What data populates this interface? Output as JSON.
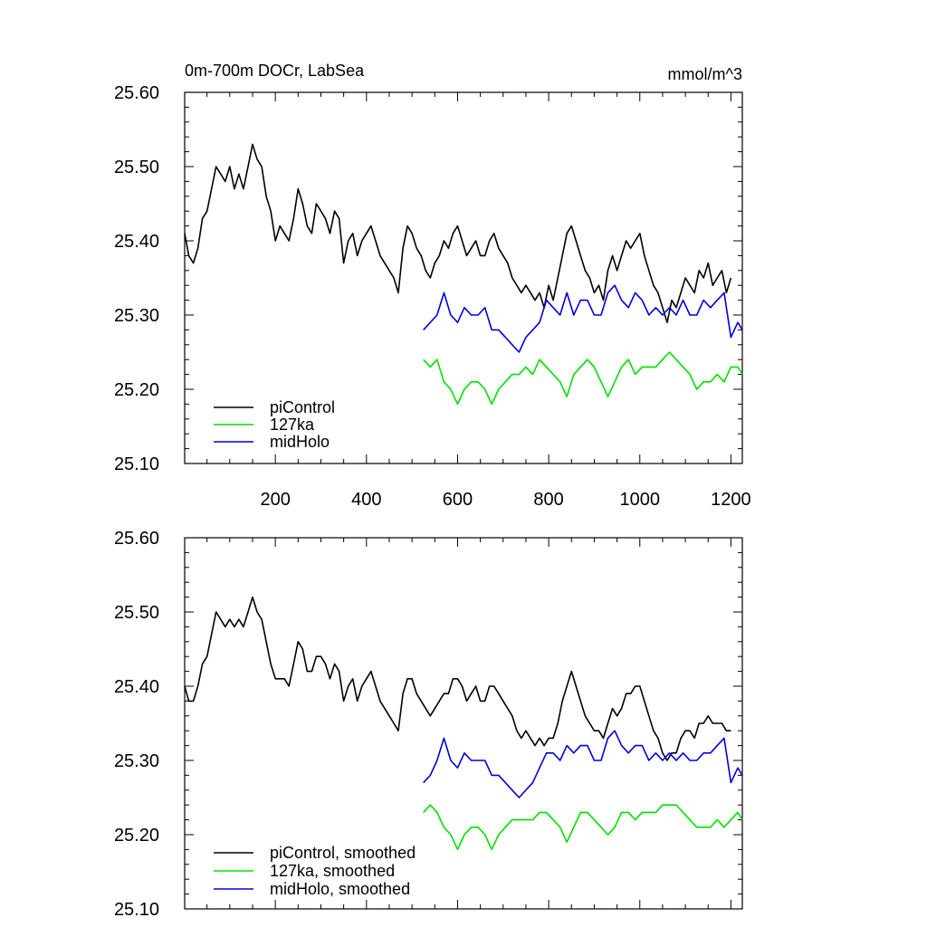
{
  "chart_data": [
    {
      "type": "line",
      "title": "0m-700m DOCr, LabSea",
      "units": "mmol/m^3",
      "xlim": [
        1,
        1225
      ],
      "ylim": [
        25.1,
        25.6
      ],
      "yticks": [
        "25.10",
        "25.20",
        "25.30",
        "25.40",
        "25.50",
        "25.60"
      ],
      "xticks": [
        "200",
        "400",
        "600",
        "800",
        "1000",
        "1200"
      ],
      "legend_placement": "bottom-left",
      "series": [
        {
          "name": "piControl",
          "color": "#000000",
          "x": [
            1,
            10,
            20,
            30,
            40,
            50,
            60,
            70,
            80,
            90,
            100,
            110,
            120,
            130,
            140,
            150,
            160,
            170,
            180,
            190,
            200,
            210,
            220,
            230,
            240,
            250,
            260,
            270,
            280,
            290,
            300,
            310,
            320,
            330,
            340,
            350,
            360,
            370,
            380,
            390,
            400,
            410,
            420,
            430,
            440,
            450,
            460,
            470,
            480,
            490,
            500,
            510,
            520,
            530,
            540,
            550,
            560,
            570,
            580,
            590,
            600,
            610,
            620,
            630,
            640,
            650,
            660,
            670,
            680,
            690,
            700,
            710,
            720,
            730,
            740,
            750,
            760,
            770,
            780,
            790,
            800,
            810,
            820,
            830,
            840,
            850,
            860,
            870,
            880,
            890,
            900,
            910,
            920,
            930,
            940,
            950,
            960,
            970,
            980,
            990,
            1000,
            1010,
            1020,
            1030,
            1040,
            1050,
            1060,
            1070,
            1080,
            1090,
            1100,
            1110,
            1120,
            1130,
            1140,
            1150,
            1160,
            1170,
            1180,
            1190,
            1200
          ],
          "y": [
            25.41,
            25.38,
            25.37,
            25.39,
            25.43,
            25.44,
            25.47,
            25.5,
            25.49,
            25.48,
            25.5,
            25.47,
            25.49,
            25.47,
            25.5,
            25.53,
            25.51,
            25.5,
            25.46,
            25.44,
            25.4,
            25.42,
            25.41,
            25.4,
            25.43,
            25.47,
            25.45,
            25.42,
            25.41,
            25.45,
            25.44,
            25.43,
            25.41,
            25.44,
            25.43,
            25.37,
            25.4,
            25.41,
            25.38,
            25.4,
            25.41,
            25.42,
            25.4,
            25.38,
            25.37,
            25.36,
            25.35,
            25.33,
            25.39,
            25.42,
            25.41,
            25.39,
            25.38,
            25.36,
            25.35,
            25.37,
            25.38,
            25.4,
            25.39,
            25.41,
            25.42,
            25.4,
            25.38,
            25.39,
            25.4,
            25.38,
            25.38,
            25.4,
            25.41,
            25.39,
            25.38,
            25.37,
            25.35,
            25.34,
            25.33,
            25.34,
            25.33,
            25.32,
            25.33,
            25.31,
            25.34,
            25.32,
            25.35,
            25.38,
            25.41,
            25.42,
            25.4,
            25.38,
            25.36,
            25.35,
            25.33,
            25.34,
            25.32,
            25.36,
            25.38,
            25.36,
            25.38,
            25.4,
            25.39,
            25.4,
            25.41,
            25.38,
            25.36,
            25.34,
            25.33,
            25.31,
            25.29,
            25.32,
            25.31,
            25.33,
            25.35,
            25.34,
            25.33,
            25.36,
            25.35,
            25.37,
            25.34,
            25.35,
            25.36,
            25.33,
            25.35
          ]
        },
        {
          "name": "127ka",
          "color": "#00e000",
          "x": [
            525,
            540,
            555,
            570,
            585,
            600,
            615,
            630,
            645,
            660,
            675,
            690,
            705,
            720,
            735,
            750,
            765,
            780,
            795,
            810,
            825,
            840,
            855,
            870,
            885,
            900,
            915,
            930,
            945,
            960,
            975,
            990,
            1005,
            1020,
            1035,
            1050,
            1065,
            1080,
            1095,
            1110,
            1125,
            1140,
            1155,
            1170,
            1185,
            1200,
            1215,
            1225
          ],
          "y": [
            25.24,
            25.23,
            25.24,
            25.21,
            25.2,
            25.18,
            25.2,
            25.21,
            25.21,
            25.2,
            25.18,
            25.2,
            25.21,
            25.22,
            25.22,
            25.23,
            25.22,
            25.24,
            25.23,
            25.22,
            25.21,
            25.19,
            25.22,
            25.23,
            25.24,
            25.23,
            25.21,
            25.19,
            25.21,
            25.23,
            25.24,
            25.22,
            25.23,
            25.23,
            25.23,
            25.24,
            25.25,
            25.24,
            25.23,
            25.22,
            25.2,
            25.21,
            25.21,
            25.22,
            25.21,
            25.23,
            25.23,
            25.22
          ]
        },
        {
          "name": "midHolo",
          "color": "#0000e0",
          "x": [
            525,
            540,
            555,
            570,
            585,
            600,
            615,
            630,
            645,
            660,
            675,
            690,
            705,
            720,
            735,
            750,
            765,
            780,
            795,
            810,
            825,
            840,
            855,
            870,
            885,
            900,
            915,
            930,
            945,
            960,
            975,
            990,
            1005,
            1020,
            1035,
            1050,
            1065,
            1080,
            1095,
            1110,
            1125,
            1140,
            1155,
            1170,
            1185,
            1200,
            1215,
            1225
          ],
          "y": [
            25.28,
            25.29,
            25.3,
            25.33,
            25.3,
            25.29,
            25.31,
            25.3,
            25.3,
            25.31,
            25.28,
            25.28,
            25.27,
            25.26,
            25.25,
            25.27,
            25.28,
            25.29,
            25.32,
            25.31,
            25.3,
            25.33,
            25.3,
            25.32,
            25.32,
            25.3,
            25.3,
            25.33,
            25.34,
            25.32,
            25.31,
            25.33,
            25.32,
            25.3,
            25.31,
            25.3,
            25.31,
            25.3,
            25.32,
            25.3,
            25.3,
            25.32,
            25.31,
            25.32,
            25.33,
            25.27,
            25.29,
            25.28
          ]
        }
      ]
    },
    {
      "type": "line",
      "xlim": [
        1,
        1225
      ],
      "ylim": [
        25.1,
        25.6
      ],
      "yticks": [
        "25.10",
        "25.20",
        "25.30",
        "25.40",
        "25.50",
        "25.60"
      ],
      "legend_placement": "bottom-left",
      "series": [
        {
          "name": "piControl, smoothed",
          "color": "#000000",
          "x": [
            1,
            10,
            20,
            30,
            40,
            50,
            60,
            70,
            80,
            90,
            100,
            110,
            120,
            130,
            140,
            150,
            160,
            170,
            180,
            190,
            200,
            210,
            220,
            230,
            240,
            250,
            260,
            270,
            280,
            290,
            300,
            310,
            320,
            330,
            340,
            350,
            360,
            370,
            380,
            390,
            400,
            410,
            420,
            430,
            440,
            450,
            460,
            470,
            480,
            490,
            500,
            510,
            520,
            530,
            540,
            550,
            560,
            570,
            580,
            590,
            600,
            610,
            620,
            630,
            640,
            650,
            660,
            670,
            680,
            690,
            700,
            710,
            720,
            730,
            740,
            750,
            760,
            770,
            780,
            790,
            800,
            810,
            820,
            830,
            840,
            850,
            860,
            870,
            880,
            890,
            900,
            910,
            920,
            930,
            940,
            950,
            960,
            970,
            980,
            990,
            1000,
            1010,
            1020,
            1030,
            1040,
            1050,
            1060,
            1070,
            1080,
            1090,
            1100,
            1110,
            1120,
            1130,
            1140,
            1150,
            1160,
            1170,
            1180,
            1190,
            1200
          ],
          "y": [
            25.4,
            25.38,
            25.38,
            25.4,
            25.43,
            25.44,
            25.47,
            25.5,
            25.49,
            25.48,
            25.49,
            25.48,
            25.49,
            25.48,
            25.5,
            25.52,
            25.5,
            25.49,
            25.46,
            25.43,
            25.41,
            25.41,
            25.41,
            25.4,
            25.43,
            25.46,
            25.45,
            25.42,
            25.42,
            25.44,
            25.44,
            25.43,
            25.41,
            25.43,
            25.42,
            25.38,
            25.4,
            25.41,
            25.38,
            25.4,
            25.41,
            25.42,
            25.4,
            25.38,
            25.37,
            25.36,
            25.35,
            25.34,
            25.39,
            25.41,
            25.41,
            25.39,
            25.38,
            25.37,
            25.36,
            25.37,
            25.38,
            25.39,
            25.39,
            25.41,
            25.41,
            25.4,
            25.38,
            25.39,
            25.4,
            25.38,
            25.38,
            25.4,
            25.4,
            25.39,
            25.38,
            25.37,
            25.36,
            25.34,
            25.33,
            25.34,
            25.33,
            25.32,
            25.33,
            25.32,
            25.33,
            25.33,
            25.35,
            25.38,
            25.4,
            25.42,
            25.4,
            25.38,
            25.36,
            25.35,
            25.34,
            25.34,
            25.33,
            25.35,
            25.37,
            25.36,
            25.37,
            25.39,
            25.39,
            25.4,
            25.4,
            25.38,
            25.36,
            25.34,
            25.33,
            25.31,
            25.3,
            25.31,
            25.31,
            25.33,
            25.34,
            25.34,
            25.33,
            25.35,
            25.35,
            25.36,
            25.35,
            25.35,
            25.35,
            25.34,
            25.34
          ]
        },
        {
          "name": "127ka, smoothed",
          "color": "#00e000",
          "x": [
            525,
            540,
            555,
            570,
            585,
            600,
            615,
            630,
            645,
            660,
            675,
            690,
            705,
            720,
            735,
            750,
            765,
            780,
            795,
            810,
            825,
            840,
            855,
            870,
            885,
            900,
            915,
            930,
            945,
            960,
            975,
            990,
            1005,
            1020,
            1035,
            1050,
            1065,
            1080,
            1095,
            1110,
            1125,
            1140,
            1155,
            1170,
            1185,
            1200,
            1215,
            1225
          ],
          "y": [
            25.23,
            25.24,
            25.23,
            25.21,
            25.2,
            25.18,
            25.2,
            25.21,
            25.21,
            25.2,
            25.18,
            25.2,
            25.21,
            25.22,
            25.22,
            25.22,
            25.22,
            25.23,
            25.23,
            25.22,
            25.21,
            25.19,
            25.21,
            25.23,
            25.23,
            25.22,
            25.21,
            25.2,
            25.21,
            25.23,
            25.23,
            25.22,
            25.23,
            25.23,
            25.23,
            25.24,
            25.24,
            25.24,
            25.23,
            25.22,
            25.21,
            25.21,
            25.21,
            25.22,
            25.21,
            25.22,
            25.23,
            25.22
          ]
        },
        {
          "name": "midHolo, smoothed",
          "color": "#0000e0",
          "x": [
            525,
            540,
            555,
            570,
            585,
            600,
            615,
            630,
            645,
            660,
            675,
            690,
            705,
            720,
            735,
            750,
            765,
            780,
            795,
            810,
            825,
            840,
            855,
            870,
            885,
            900,
            915,
            930,
            945,
            960,
            975,
            990,
            1005,
            1020,
            1035,
            1050,
            1065,
            1080,
            1095,
            1110,
            1125,
            1140,
            1155,
            1170,
            1185,
            1200,
            1215,
            1225
          ],
          "y": [
            25.27,
            25.28,
            25.3,
            25.33,
            25.3,
            25.29,
            25.31,
            25.3,
            25.3,
            25.3,
            25.28,
            25.28,
            25.27,
            25.26,
            25.25,
            25.26,
            25.27,
            25.29,
            25.31,
            25.31,
            25.3,
            25.32,
            25.31,
            25.32,
            25.32,
            25.3,
            25.3,
            25.33,
            25.34,
            25.32,
            25.31,
            25.32,
            25.32,
            25.3,
            25.31,
            25.3,
            25.31,
            25.3,
            25.31,
            25.3,
            25.3,
            25.31,
            25.31,
            25.32,
            25.33,
            25.27,
            25.29,
            25.28
          ]
        }
      ]
    }
  ]
}
